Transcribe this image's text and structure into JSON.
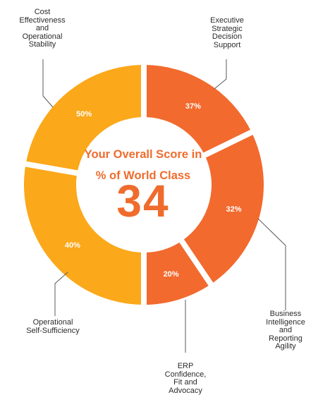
{
  "chart_data": {
    "type": "pie",
    "variant": "donut",
    "center": {
      "title": "Your Overall Score in\n% of World Class",
      "value": "34"
    },
    "slices": [
      {
        "label": "Executive\nStrategic\nDecision\nSupport",
        "value_label": "37%",
        "value": 37,
        "group": "right"
      },
      {
        "label": "Business\nIntelligence\nand\nReporting\nAgility",
        "value_label": "32%",
        "value": 32,
        "group": "right"
      },
      {
        "label": "ERP\nConfidence,\nFit and\nAdvocacy",
        "value_label": "20%",
        "value": 20,
        "group": "right"
      },
      {
        "label": "Operational\nSelf-Sufficiency",
        "value_label": "40%",
        "value": 40,
        "group": "left"
      },
      {
        "label": "Cost\nEffectiveness\nand\nOperational\nStability",
        "value_label": "50%",
        "value": 50,
        "group": "left"
      }
    ],
    "colors": {
      "right": "#f26a2e",
      "left": "#fba81a",
      "center_text": "#ef6c2d",
      "slice_label": "#ffffff",
      "leader": "#5a5a5a"
    },
    "legend": "none"
  }
}
